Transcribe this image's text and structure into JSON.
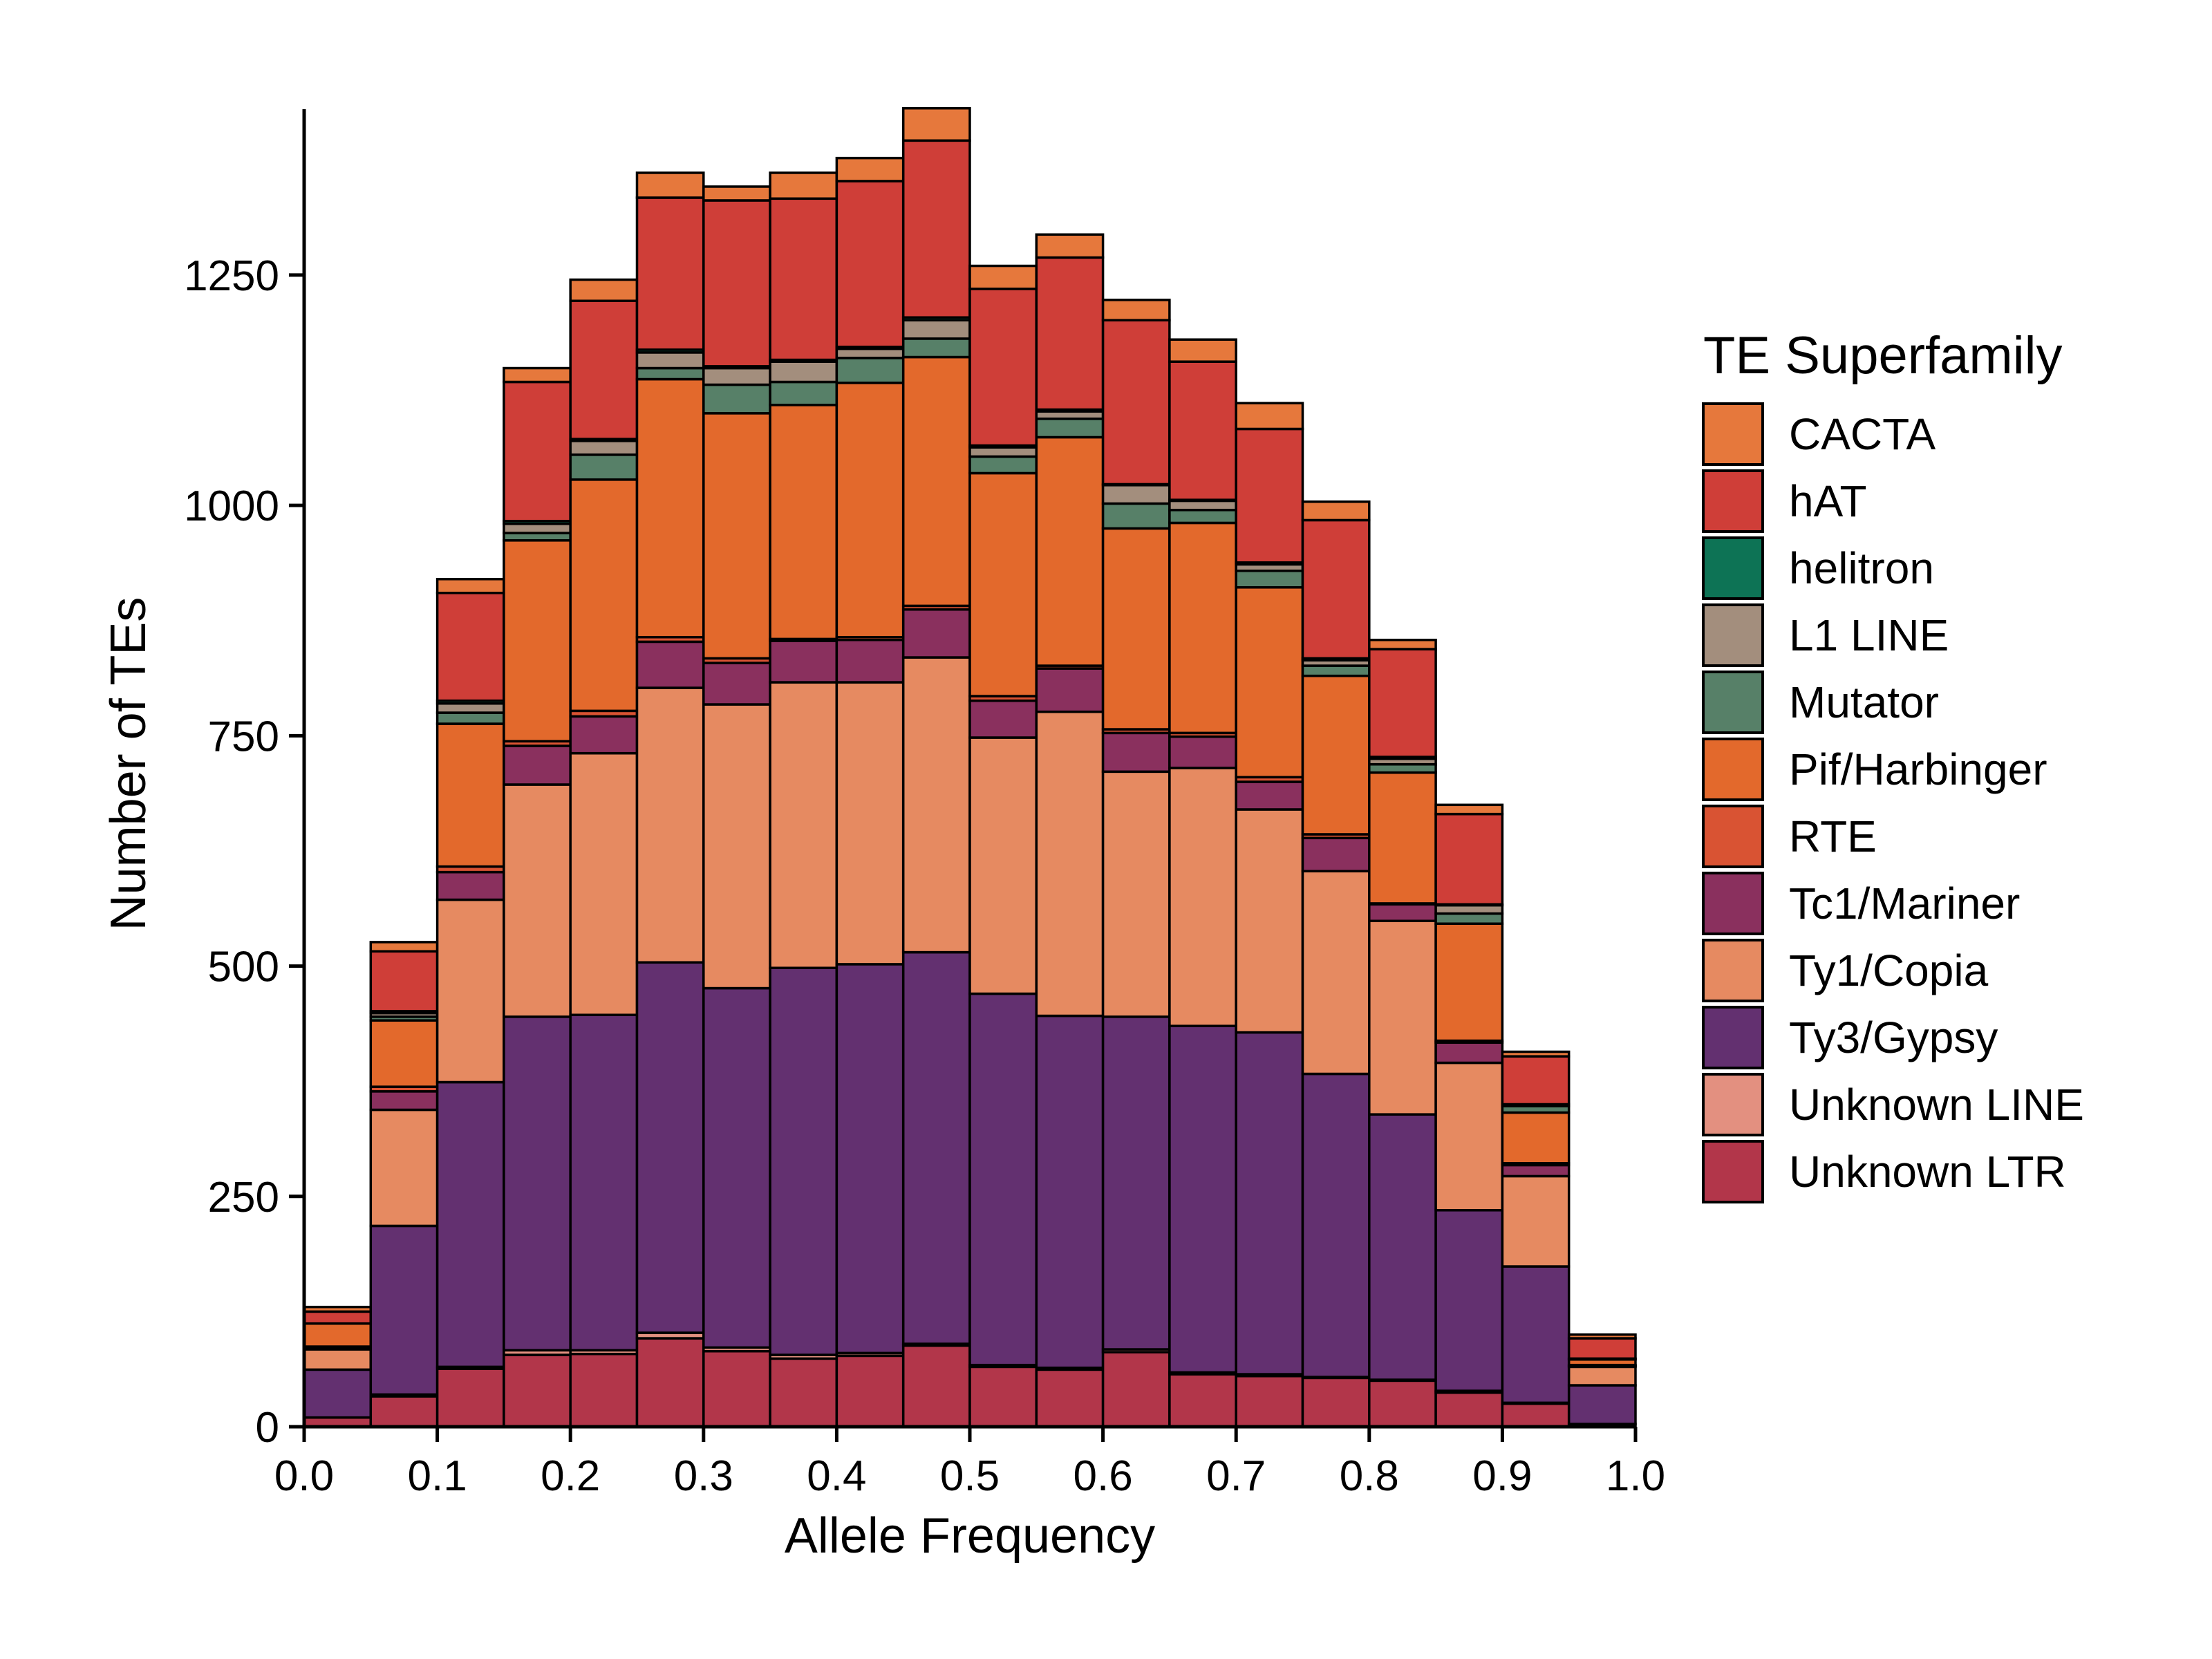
{
  "chart_data": {
    "type": "bar",
    "stacked": true,
    "xlabel": "Allele Frequency",
    "ylabel": "Number of TEs",
    "xlim": [
      0.0,
      1.0
    ],
    "ylim": [
      0,
      1430
    ],
    "xticks": [
      "0.0",
      "0.1",
      "0.2",
      "0.3",
      "0.4",
      "0.5",
      "0.6",
      "0.7",
      "0.8",
      "0.9",
      "1.0"
    ],
    "yticks": [
      "0",
      "250",
      "500",
      "750",
      "1000",
      "1250"
    ],
    "bin_width": 0.05,
    "bins": [
      0.0,
      0.05,
      0.1,
      0.15,
      0.2,
      0.25,
      0.3,
      0.35,
      0.4,
      0.45,
      0.5,
      0.55,
      0.6,
      0.65,
      0.7,
      0.75,
      0.8,
      0.85,
      0.9,
      0.95
    ],
    "legend": {
      "title": "TE Superfamily",
      "position": "right"
    },
    "series": [
      {
        "name": "Unknown LTR",
        "color": "#B2364A",
        "values": [
          10,
          33,
          63,
          78,
          79,
          96,
          82,
          74,
          77,
          88,
          65,
          62,
          81,
          57,
          55,
          53,
          50,
          37,
          25,
          3
        ]
      },
      {
        "name": "Unknown LINE",
        "color": "#E39080",
        "values": [
          0,
          2,
          2,
          5,
          4,
          6,
          4,
          4,
          3,
          2,
          2,
          2,
          3,
          2,
          2,
          1,
          1,
          2,
          1,
          0
        ]
      },
      {
        "name": "Ty3/Gypsy",
        "color": "#633070",
        "values": [
          52,
          183,
          309,
          362,
          364,
          402,
          390,
          420,
          422,
          425,
          403,
          382,
          361,
          376,
          371,
          329,
          288,
          196,
          148,
          42
        ]
      },
      {
        "name": "Ty1/Copia",
        "color": "#E68A61",
        "values": [
          22,
          126,
          198,
          252,
          284,
          298,
          308,
          310,
          306,
          320,
          278,
          330,
          266,
          280,
          242,
          220,
          210,
          160,
          98,
          20
        ]
      },
      {
        "name": "Tc1/Mariner",
        "color": "#8A305E",
        "values": [
          2,
          20,
          30,
          42,
          40,
          50,
          45,
          45,
          46,
          52,
          40,
          47,
          42,
          34,
          30,
          36,
          18,
          22,
          12,
          1
        ]
      },
      {
        "name": "RTE",
        "color": "#D95333",
        "values": [
          1,
          5,
          6,
          5,
          6,
          5,
          5,
          2,
          3,
          4,
          5,
          3,
          4,
          4,
          5,
          4,
          1,
          2,
          2,
          1
        ]
      },
      {
        "name": "Pif/Harbinger",
        "color": "#E3692C",
        "values": [
          25,
          72,
          155,
          218,
          251,
          280,
          266,
          254,
          276,
          270,
          242,
          248,
          218,
          228,
          206,
          172,
          142,
          127,
          55,
          6
        ]
      },
      {
        "name": "Mutator",
        "color": "#578068",
        "values": [
          0,
          4,
          12,
          8,
          27,
          12,
          31,
          25,
          27,
          20,
          18,
          20,
          27,
          14,
          18,
          11,
          9,
          11,
          7,
          0
        ]
      },
      {
        "name": "L1 LINE",
        "color": "#A38E7D",
        "values": [
          0,
          4,
          10,
          10,
          15,
          17,
          18,
          22,
          10,
          20,
          10,
          8,
          20,
          10,
          7,
          6,
          6,
          9,
          0,
          0
        ]
      },
      {
        "name": "helitron",
        "color": "#0D7355",
        "values": [
          0,
          2,
          3,
          3,
          2,
          3,
          2,
          2,
          2,
          3,
          2,
          2,
          1,
          1,
          2,
          2,
          2,
          1,
          2,
          1
        ]
      },
      {
        "name": "hAT",
        "color": "#CF3E38",
        "values": [
          13,
          65,
          117,
          151,
          150,
          165,
          180,
          175,
          180,
          192,
          170,
          165,
          178,
          150,
          145,
          150,
          117,
          98,
          52,
          22
        ]
      },
      {
        "name": "CACTA",
        "color": "#E6783C",
        "values": [
          5,
          10,
          15,
          15,
          23,
          27,
          15,
          28,
          25,
          35,
          25,
          25,
          22,
          24,
          28,
          20,
          10,
          10,
          5,
          4
        ]
      }
    ]
  }
}
